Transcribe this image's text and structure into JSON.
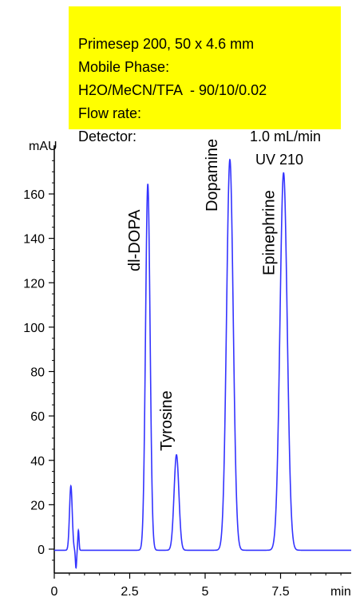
{
  "info": {
    "column": "Primesep 200, 50 x 4.6 mm",
    "mobile_phase_label": "Mobile Phase:",
    "mobile_phase_value": "H2O/MeCN/TFA  - 90/10/0.02",
    "flow_label": "Flow rate:",
    "flow_value": "1.0 mL/min",
    "detector_label": "Detector:",
    "detector_value": "UV 210"
  },
  "chart_data": {
    "type": "line",
    "ylabel": "mAU",
    "xlabel": "min",
    "xlim": [
      0,
      10
    ],
    "ylim": [
      -8,
      180
    ],
    "x_ticks": [
      "0",
      "2.5",
      "5",
      "7.5"
    ],
    "y_ticks": [
      0,
      20,
      40,
      60,
      80,
      100,
      120,
      140,
      160
    ],
    "grid": false,
    "line_color": "#3333ff",
    "baseline": -0.5,
    "peaks": [
      {
        "name": "",
        "rt": 0.55,
        "height": 29,
        "width": 0.045
      },
      {
        "name": "",
        "rt": 0.72,
        "height": -8,
        "width": 0.02
      },
      {
        "name": "",
        "rt": 0.8,
        "height": 9,
        "width": 0.02
      },
      {
        "name": "dl-DOPA",
        "rt": 3.1,
        "height": 165,
        "width": 0.075
      },
      {
        "name": "Tyrosine",
        "rt": 4.05,
        "height": 43,
        "width": 0.08
      },
      {
        "name": "Dopamine",
        "rt": 5.82,
        "height": 176,
        "width": 0.11
      },
      {
        "name": "Epinephrine",
        "rt": 7.6,
        "height": 170,
        "width": 0.12
      }
    ]
  }
}
